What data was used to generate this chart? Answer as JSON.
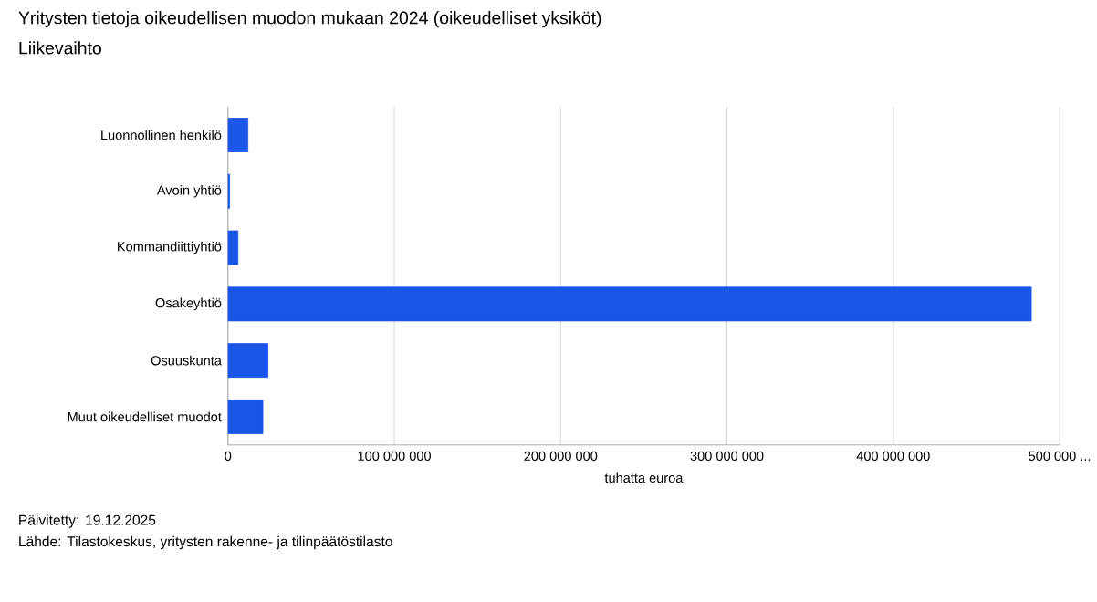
{
  "chart_data": {
    "type": "bar",
    "orientation": "horizontal",
    "title": "Yritysten tietoja oikeudellisen muodon mukaan 2024 (oikeudelliset yksiköt)",
    "subtitle": "Liikevaihto",
    "xlabel": "tuhatta euroa",
    "categories": [
      "Luonnollinen henkilö",
      "Avoin yhtiö",
      "Kommandiittiyhtiö",
      "Osakeyhtiö",
      "Osuuskunta",
      "Muut oikeudelliset muodot"
    ],
    "values": [
      12000000,
      1000000,
      6000000,
      483000000,
      24000000,
      21000000
    ],
    "color": "#1a56e8",
    "xlim": [
      0,
      500000000
    ],
    "xticks": [
      0,
      {
        "value": 100000000,
        "label": "100 000 000"
      },
      {
        "value": 200000000,
        "label": "200 000 000"
      },
      {
        "value": 300000000,
        "label": "300 000 000"
      },
      {
        "value": 400000000,
        "label": "400 000 000"
      },
      {
        "value": 500000000,
        "label": "500 000 ..."
      }
    ],
    "grid": "x",
    "annotations": [
      "Päivitetty: 19.12.2025",
      "Lähde: Tilastokeskus, yritysten rakenne- ja tilinpäätöstilasto"
    ]
  }
}
